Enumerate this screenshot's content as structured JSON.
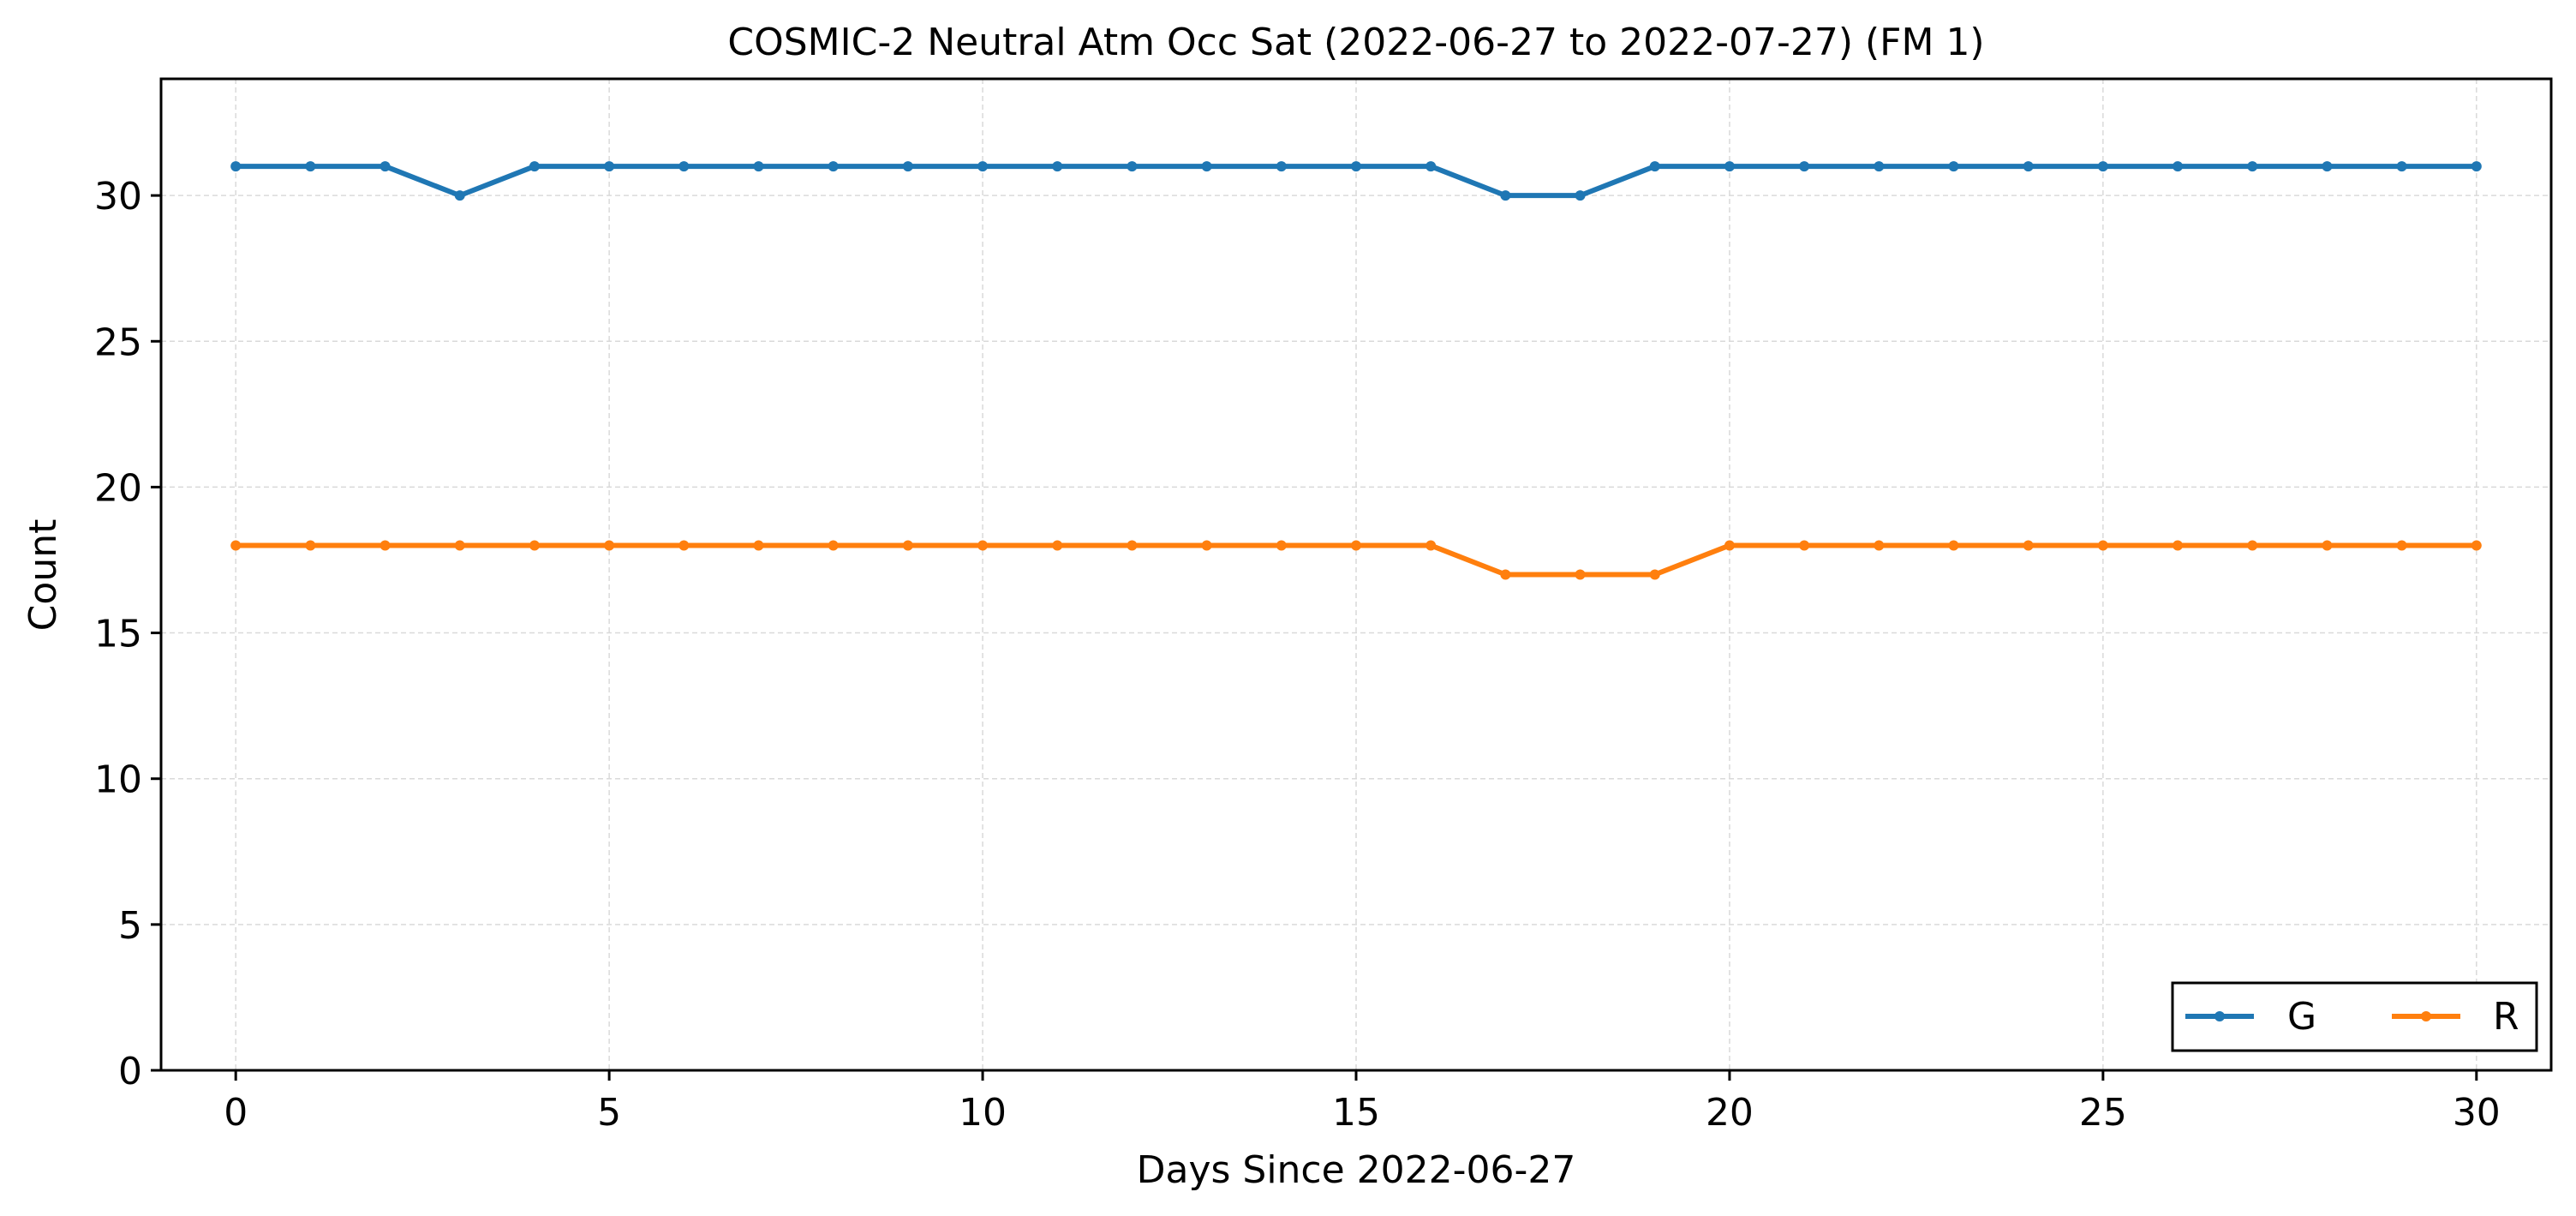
{
  "chart_data": {
    "type": "line",
    "title": "COSMIC-2 Neutral Atm Occ Sat (2022-06-27 to 2022-07-27) (FM 1)",
    "xlabel": "Days Since 2022-06-27",
    "ylabel": "Count",
    "xlim": [
      -1,
      31
    ],
    "ylim": [
      0,
      34
    ],
    "xticks": [
      0,
      5,
      10,
      15,
      20,
      25,
      30
    ],
    "yticks": [
      0,
      5,
      10,
      15,
      20,
      25,
      30
    ],
    "grid": true,
    "legend_position": "bottom-right",
    "x": [
      0,
      1,
      2,
      3,
      4,
      5,
      6,
      7,
      8,
      9,
      10,
      11,
      12,
      13,
      14,
      15,
      16,
      17,
      18,
      19,
      20,
      21,
      22,
      23,
      24,
      25,
      26,
      27,
      28,
      29,
      30
    ],
    "series": [
      {
        "name": "G",
        "color": "#1f77b4",
        "values": [
          31,
          31,
          31,
          30,
          31,
          31,
          31,
          31,
          31,
          31,
          31,
          31,
          31,
          31,
          31,
          31,
          31,
          30,
          30,
          31,
          31,
          31,
          31,
          31,
          31,
          31,
          31,
          31,
          31,
          31,
          31
        ]
      },
      {
        "name": "R",
        "color": "#ff7f0e",
        "values": [
          18,
          18,
          18,
          18,
          18,
          18,
          18,
          18,
          18,
          18,
          18,
          18,
          18,
          18,
          18,
          18,
          18,
          17,
          17,
          17,
          18,
          18,
          18,
          18,
          18,
          18,
          18,
          18,
          18,
          18,
          18
        ]
      }
    ]
  }
}
